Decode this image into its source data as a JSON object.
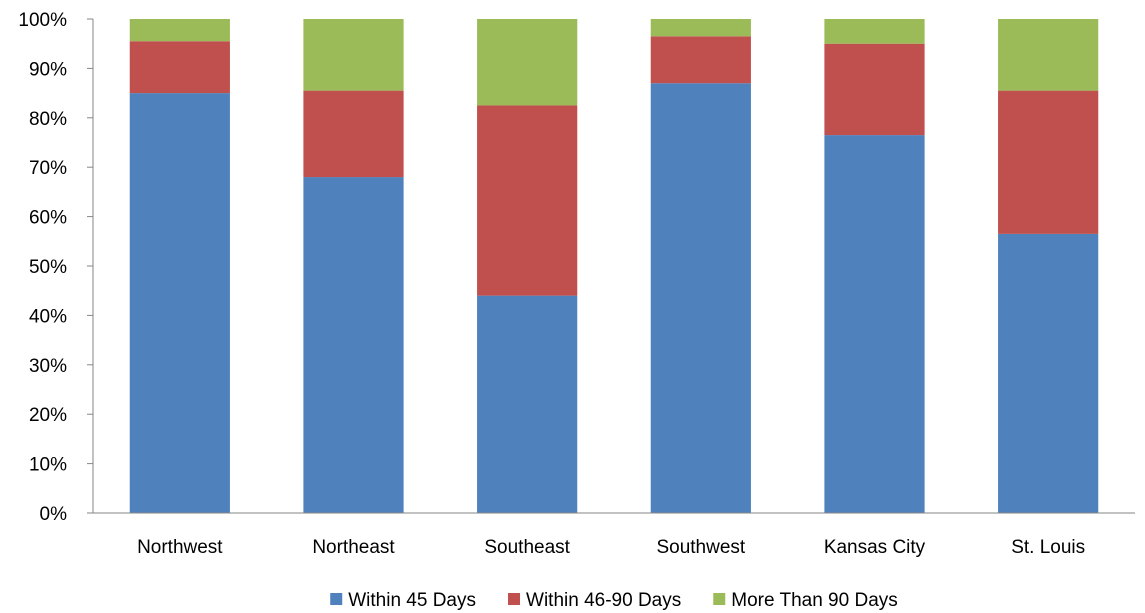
{
  "chart_data": {
    "type": "bar",
    "stacked": true,
    "categories": [
      "Northwest",
      "Northeast",
      "Southeast",
      "Southwest",
      "Kansas City",
      "St. Louis"
    ],
    "series": [
      {
        "name": "Within 45 Days",
        "color": "#4F81BD",
        "values": [
          85,
          68,
          44,
          87,
          76.5,
          56.5
        ]
      },
      {
        "name": "Within 46-90 Days",
        "color": "#C0504D",
        "values": [
          10.5,
          17.5,
          38.5,
          9.5,
          18.5,
          29
        ]
      },
      {
        "name": "More Than 90 Days",
        "color": "#9BBB59",
        "values": [
          4.5,
          14.5,
          17.5,
          3.5,
          5,
          14.5
        ]
      }
    ],
    "ylim": [
      0,
      100
    ],
    "yticks": [
      "0%",
      "10%",
      "20%",
      "30%",
      "40%",
      "50%",
      "60%",
      "70%",
      "80%",
      "90%",
      "100%"
    ],
    "grid": false,
    "legend_position": "bottom"
  }
}
